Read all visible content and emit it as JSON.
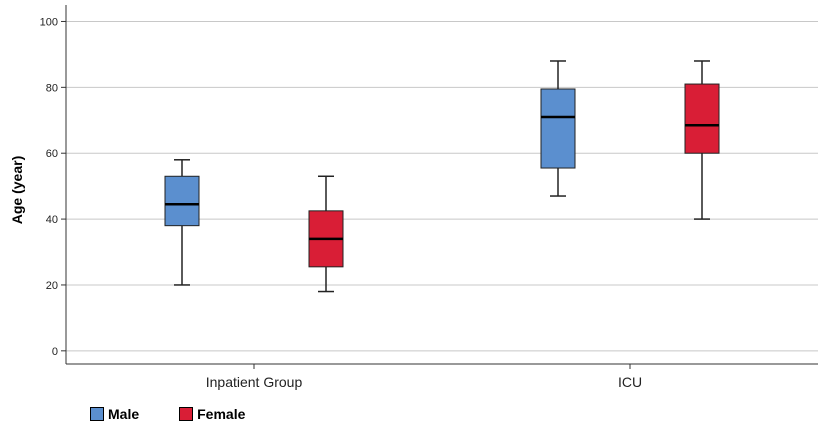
{
  "chart_data": {
    "type": "box",
    "title": "",
    "ylabel": "Age (year)",
    "xlabel": "",
    "ylim": [
      -4,
      105
    ],
    "yticks": [
      0,
      20,
      40,
      60,
      80,
      100
    ],
    "grid": true,
    "legend_position": "bottom-left",
    "categories": [
      "Inpatient Group",
      "ICU"
    ],
    "series": [
      {
        "name": "Male",
        "color": "#5b8fcf",
        "boxes": [
          {
            "min": 20,
            "q1": 38,
            "median": 44.5,
            "q3": 53,
            "max": 58
          },
          {
            "min": 47,
            "q1": 55.5,
            "median": 71,
            "q3": 79.5,
            "max": 88
          }
        ]
      },
      {
        "name": "Female",
        "color": "#d91e36",
        "boxes": [
          {
            "min": 18,
            "q1": 25.5,
            "median": 34,
            "q3": 42.5,
            "max": 53
          },
          {
            "min": 40,
            "q1": 60,
            "median": 68.5,
            "q3": 81,
            "max": 88
          }
        ]
      }
    ]
  }
}
